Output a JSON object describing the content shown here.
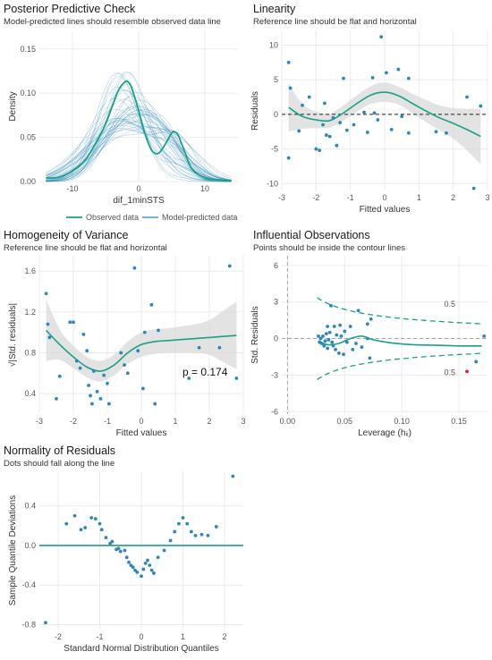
{
  "colors": {
    "observed": "#1aa086",
    "predicted": "#2f86b6",
    "ref": "#1aa086",
    "point": "#2f86b6",
    "ribbon": "#d9d9d9",
    "grid": "#ebebeb",
    "contour": "#1aa086",
    "highlight": "#e41a1c"
  },
  "ppc": {
    "title": "Posterior Predictive Check",
    "subtitle": "Model-predicted lines should resemble observed data line",
    "chart_data": {
      "type": "line",
      "xlabel": "dif_1minSTS",
      "ylabel": "Density",
      "xlim": [
        -15,
        15
      ],
      "ylim": [
        0,
        0.17
      ],
      "xticks": [
        -10,
        0,
        10
      ],
      "yticks": [
        0.0,
        0.05,
        0.1,
        0.15
      ],
      "ytick_labels": [
        "0.00",
        "0.05",
        "0.10",
        "0.15"
      ],
      "legend": [
        "Observed data",
        "Model-predicted data"
      ],
      "legend_position": "bottom",
      "observed": {
        "name": "Observed data",
        "x": [
          -14,
          -12,
          -10,
          -8,
          -6,
          -5,
          -4,
          -3,
          -2,
          -1.5,
          -1,
          0,
          1,
          2,
          3,
          4,
          5,
          5.5,
          6,
          7,
          8,
          10,
          12,
          14
        ],
        "y": [
          0.004,
          0.005,
          0.012,
          0.025,
          0.05,
          0.065,
          0.085,
          0.104,
          0.113,
          0.112,
          0.105,
          0.08,
          0.053,
          0.035,
          0.032,
          0.042,
          0.055,
          0.056,
          0.052,
          0.033,
          0.015,
          0.004,
          0.002,
          0.001
        ]
      },
      "predicted_lines": 40
    }
  },
  "lin": {
    "title": "Linearity",
    "subtitle": "Reference line should be flat and horizontal",
    "chart_data": {
      "type": "scatter",
      "xlabel": "Fitted values",
      "ylabel": "Residuals",
      "xlim": [
        -3,
        3
      ],
      "ylim": [
        -11,
        12
      ],
      "xticks": [
        -3,
        -2,
        -1,
        0,
        1,
        2,
        3
      ],
      "yticks": [
        -10,
        -5,
        0,
        5,
        10
      ],
      "points": [
        [
          -2.8,
          7.5
        ],
        [
          -2.75,
          3.8
        ],
        [
          -2.8,
          -6.3
        ],
        [
          -2.5,
          -2.4
        ],
        [
          -2.4,
          1.3
        ],
        [
          -2.2,
          2.5
        ],
        [
          -2.0,
          -5.0
        ],
        [
          -1.9,
          -5.2
        ],
        [
          -1.8,
          -1.5
        ],
        [
          -1.75,
          1.6
        ],
        [
          -1.7,
          -3.0
        ],
        [
          -1.6,
          -3.2
        ],
        [
          -1.5,
          -0.5
        ],
        [
          -1.4,
          -4.5
        ],
        [
          -1.3,
          -1.2
        ],
        [
          -1.2,
          5.2
        ],
        [
          -1.1,
          -2.3
        ],
        [
          -0.9,
          -1.5
        ],
        [
          -0.6,
          0.3
        ],
        [
          -0.5,
          -2.6
        ],
        [
          -0.35,
          5.3
        ],
        [
          -0.3,
          0.2
        ],
        [
          -0.2,
          -0.8
        ],
        [
          -0.1,
          11.2
        ],
        [
          0.05,
          6.0
        ],
        [
          0.2,
          -2.2
        ],
        [
          0.4,
          6.5
        ],
        [
          0.5,
          -0.3
        ],
        [
          0.7,
          5.2
        ],
        [
          0.7,
          -2.7
        ],
        [
          1.5,
          -2.5
        ],
        [
          1.8,
          -2.7
        ],
        [
          2.4,
          2.5
        ],
        [
          2.6,
          -10.7
        ],
        [
          2.8,
          1.2
        ]
      ],
      "smooth": {
        "x": [
          -2.8,
          -2.4,
          -2.0,
          -1.6,
          -1.2,
          -0.8,
          -0.4,
          0,
          0.4,
          0.8,
          1.2,
          1.6,
          2.0,
          2.4,
          2.8
        ],
        "y": [
          1.0,
          -0.3,
          -0.8,
          -0.9,
          0.2,
          1.6,
          2.8,
          3.2,
          2.7,
          1.6,
          0.5,
          -0.5,
          -1.3,
          -2.2,
          -3.2
        ]
      },
      "ribbon_halfwidth": [
        3.5,
        1.8,
        1.2,
        1.0,
        1.1,
        1.2,
        1.3,
        1.4,
        1.3,
        1.4,
        1.6,
        1.8,
        2.2,
        3.0,
        4.0
      ]
    }
  },
  "hov": {
    "title": "Homogeneity of Variance",
    "subtitle": "Reference line should be flat and horizontal",
    "annotation": "p = 0.174",
    "chart_data": {
      "type": "scatter",
      "xlabel": "Fitted values",
      "ylabel": "√|Std. residuals|",
      "xlim": [
        -3,
        3
      ],
      "ylim": [
        0.2,
        1.75
      ],
      "xticks": [
        -3,
        -2,
        -1,
        0,
        1,
        2,
        3
      ],
      "yticks": [
        0.4,
        0.8,
        1.2,
        1.6
      ],
      "ytick_labels": [
        "0.4",
        "0.8",
        "1.2",
        "1.6"
      ],
      "points": [
        [
          -2.8,
          1.38
        ],
        [
          -2.75,
          1.08
        ],
        [
          -2.7,
          0.95
        ],
        [
          -2.5,
          0.35
        ],
        [
          -2.4,
          0.57
        ],
        [
          -2.1,
          1.1
        ],
        [
          -2.0,
          1.1
        ],
        [
          -1.9,
          0.72
        ],
        [
          -1.8,
          0.65
        ],
        [
          -1.7,
          0.98
        ],
        [
          -1.6,
          0.82
        ],
        [
          -1.55,
          0.48
        ],
        [
          -1.5,
          0.38
        ],
        [
          -1.45,
          0.3
        ],
        [
          -1.4,
          0.62
        ],
        [
          -1.3,
          0.42
        ],
        [
          -1.2,
          0.35
        ],
        [
          -1.1,
          0.58
        ],
        [
          -1.0,
          0.5
        ],
        [
          -0.95,
          0.3
        ],
        [
          -0.6,
          0.8
        ],
        [
          -0.5,
          0.68
        ],
        [
          -0.4,
          0.6
        ],
        [
          -0.2,
          1.63
        ],
        [
          -0.1,
          0.82
        ],
        [
          0.05,
          0.45
        ],
        [
          0.1,
          1.0
        ],
        [
          0.3,
          1.27
        ],
        [
          0.4,
          0.3
        ],
        [
          0.5,
          1.02
        ],
        [
          1.4,
          0.55
        ],
        [
          1.7,
          0.85
        ],
        [
          2.3,
          0.85
        ],
        [
          2.6,
          1.65
        ],
        [
          2.8,
          0.55
        ]
      ],
      "smooth": {
        "x": [
          -2.8,
          -2.4,
          -2.0,
          -1.6,
          -1.2,
          -0.8,
          -0.4,
          0,
          0.4,
          0.8,
          1.2,
          1.6,
          2.0,
          2.4,
          2.8
        ],
        "y": [
          1.02,
          0.88,
          0.76,
          0.66,
          0.62,
          0.68,
          0.8,
          0.88,
          0.91,
          0.92,
          0.93,
          0.94,
          0.95,
          0.96,
          0.97
        ]
      },
      "ribbon_halfwidth": [
        0.3,
        0.15,
        0.11,
        0.1,
        0.1,
        0.1,
        0.11,
        0.12,
        0.12,
        0.12,
        0.13,
        0.14,
        0.17,
        0.25,
        0.33
      ]
    }
  },
  "infl": {
    "title": "Influential Observations",
    "subtitle": "Points should be inside the contour lines",
    "contour_label": "0.5",
    "chart_data": {
      "type": "scatter",
      "xlabel": "Leverage (hᵢᵢ)",
      "ylabel": "Std. Residuals",
      "xlim": [
        -0.005,
        0.175
      ],
      "ylim": [
        -6.2,
        6.8
      ],
      "xticks": [
        0.0,
        0.05,
        0.1,
        0.15
      ],
      "xtick_labels": [
        "0.00",
        "0.05",
        "0.10",
        "0.15"
      ],
      "yticks": [
        -6,
        -3,
        0,
        3,
        6
      ],
      "points": [
        [
          0.027,
          0.2
        ],
        [
          0.028,
          -0.3
        ],
        [
          0.029,
          0.0
        ],
        [
          0.03,
          -0.4
        ],
        [
          0.031,
          0.2
        ],
        [
          0.032,
          -0.6
        ],
        [
          0.033,
          -0.2
        ],
        [
          0.034,
          0.4
        ],
        [
          0.035,
          -0.8
        ],
        [
          0.035,
          1.0
        ],
        [
          0.036,
          -0.1
        ],
        [
          0.037,
          0.5
        ],
        [
          0.038,
          2.7
        ],
        [
          0.039,
          -0.3
        ],
        [
          0.04,
          -0.6
        ],
        [
          0.041,
          1.0
        ],
        [
          0.042,
          -0.9
        ],
        [
          0.043,
          0.3
        ],
        [
          0.045,
          -1.2
        ],
        [
          0.046,
          1.1
        ],
        [
          0.047,
          0.2
        ],
        [
          0.049,
          -1.3
        ],
        [
          0.05,
          0.6
        ],
        [
          0.052,
          -0.3
        ],
        [
          0.055,
          1.0
        ],
        [
          0.057,
          -0.9
        ],
        [
          0.06,
          -0.4
        ],
        [
          0.062,
          2.3
        ],
        [
          0.065,
          -0.7
        ],
        [
          0.07,
          0.0
        ],
        [
          0.07,
          1.2
        ],
        [
          0.072,
          -1.6
        ],
        [
          0.073,
          1.6
        ],
        [
          0.165,
          -1.9
        ],
        [
          0.172,
          0.2
        ]
      ],
      "highlight": [
        [
          0.157,
          -2.7
        ]
      ],
      "smooth": {
        "x": [
          0.027,
          0.035,
          0.045,
          0.055,
          0.065,
          0.075,
          0.09,
          0.11,
          0.13,
          0.15,
          0.17
        ],
        "y": [
          -0.2,
          -0.5,
          -0.4,
          0.0,
          0.2,
          -0.1,
          -0.35,
          -0.5,
          -0.55,
          -0.6,
          -0.6
        ]
      },
      "contour_coef": 1.0
    }
  },
  "qq": {
    "title": "Normality of Residuals",
    "subtitle": "Dots should fall along the line",
    "chart_data": {
      "type": "scatter",
      "xlabel": "Standard Normal Distribution Quantiles",
      "ylabel": "Sample Quantile Deviations",
      "xlim": [
        -2.45,
        2.45
      ],
      "ylim": [
        -0.85,
        0.75
      ],
      "xticks": [
        -2,
        -1,
        0,
        1,
        2
      ],
      "yticks": [
        -0.8,
        -0.4,
        0.0,
        0.4
      ],
      "ytick_labels": [
        "-0.8",
        "-0.4",
        "0.0",
        "0.4"
      ],
      "points": [
        [
          -2.3,
          -0.78
        ],
        [
          -1.8,
          0.22
        ],
        [
          -1.6,
          0.3
        ],
        [
          -1.45,
          0.16
        ],
        [
          -1.35,
          0.18
        ],
        [
          -1.2,
          0.28
        ],
        [
          -1.1,
          0.27
        ],
        [
          -1.0,
          0.22
        ],
        [
          -0.95,
          0.16
        ],
        [
          -0.85,
          0.08
        ],
        [
          -0.75,
          0.02
        ],
        [
          -0.7,
          0.04
        ],
        [
          -0.6,
          -0.04
        ],
        [
          -0.55,
          -0.03
        ],
        [
          -0.5,
          -0.06
        ],
        [
          -0.4,
          -0.05
        ],
        [
          -0.35,
          -0.12
        ],
        [
          -0.3,
          -0.17
        ],
        [
          -0.25,
          -0.2
        ],
        [
          -0.2,
          -0.22
        ],
        [
          -0.15,
          -0.25
        ],
        [
          -0.1,
          -0.27
        ],
        [
          0.0,
          -0.31
        ],
        [
          0.05,
          -0.24
        ],
        [
          0.1,
          -0.18
        ],
        [
          0.15,
          -0.15
        ],
        [
          0.2,
          -0.2
        ],
        [
          0.25,
          -0.25
        ],
        [
          0.3,
          -0.28
        ],
        [
          0.4,
          -0.12
        ],
        [
          0.55,
          -0.05
        ],
        [
          0.7,
          0.05
        ],
        [
          0.8,
          0.14
        ],
        [
          0.9,
          0.22
        ],
        [
          1.0,
          0.28
        ],
        [
          1.1,
          0.22
        ],
        [
          1.2,
          0.14
        ],
        [
          1.3,
          0.1
        ],
        [
          1.45,
          0.11
        ],
        [
          1.6,
          0.1
        ],
        [
          1.8,
          0.19
        ],
        [
          2.2,
          0.7
        ]
      ],
      "refline": 0.0
    }
  }
}
